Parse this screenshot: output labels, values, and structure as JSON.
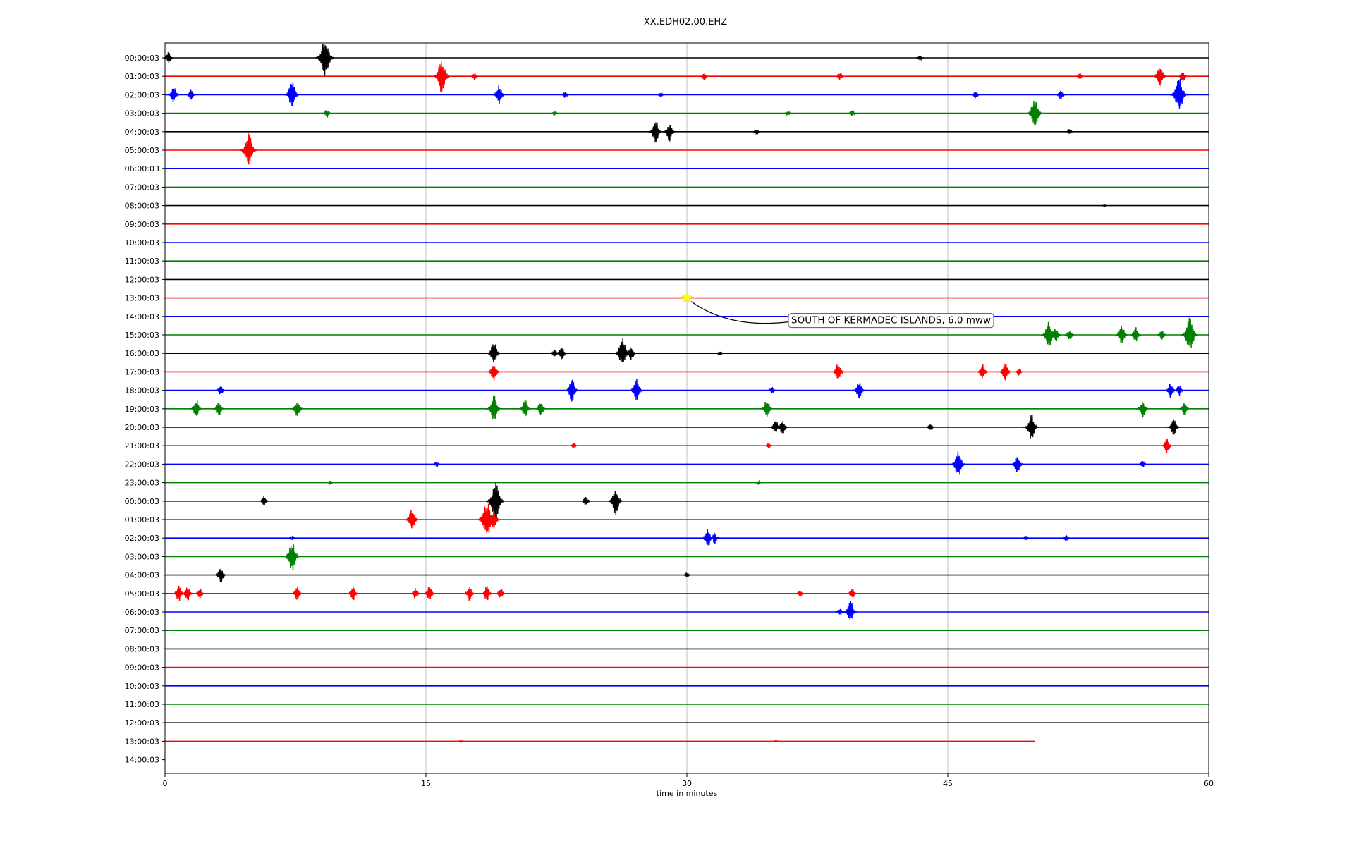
{
  "chart_data": {
    "type": "line",
    "title": "XX.EDH02.00.EHZ",
    "xlabel": "time in minutes",
    "ylabel": "",
    "xlim": [
      0,
      60
    ],
    "x_ticks": [
      0,
      15,
      30,
      45,
      60
    ],
    "grid": "vertical at 15 min",
    "row_colors": [
      "#000000",
      "#ff0000",
      "#0000ff",
      "#008000"
    ],
    "row_labels": [
      "00:00:03",
      "01:00:03",
      "02:00:03",
      "03:00:03",
      "04:00:03",
      "05:00:03",
      "06:00:03",
      "07:00:03",
      "08:00:03",
      "09:00:03",
      "10:00:03",
      "11:00:03",
      "12:00:03",
      "13:00:03",
      "14:00:03",
      "15:00:03",
      "16:00:03",
      "17:00:03",
      "18:00:03",
      "19:00:03",
      "20:00:03",
      "21:00:03",
      "22:00:03",
      "23:00:03",
      "00:00:03",
      "01:00:03",
      "02:00:03",
      "03:00:03",
      "04:00:03",
      "05:00:03",
      "06:00:03",
      "07:00:03",
      "08:00:03",
      "09:00:03",
      "10:00:03",
      "11:00:03",
      "12:00:03",
      "13:00:03",
      "14:00:03"
    ],
    "trace_end_minutes": [
      60,
      60,
      60,
      60,
      60,
      60,
      60,
      60,
      60,
      60,
      60,
      60,
      60,
      60,
      60,
      60,
      60,
      60,
      60,
      60,
      60,
      60,
      60,
      60,
      60,
      60,
      60,
      60,
      60,
      60,
      60,
      60,
      60,
      60,
      60,
      60,
      60,
      50,
      0
    ],
    "bursts": [
      [
        [
          0.2,
          0.3
        ],
        [
          9.2,
          1
        ],
        [
          43.4,
          0.15
        ]
      ],
      [
        [
          15.9,
          0.9
        ],
        [
          17.8,
          0.2
        ],
        [
          31,
          0.2
        ],
        [
          38.8,
          0.2
        ],
        [
          52.6,
          0.2
        ],
        [
          57.2,
          0.6
        ],
        [
          58.5,
          0.3
        ]
      ],
      [
        [
          0.5,
          0.45
        ],
        [
          1.5,
          0.3
        ],
        [
          7.3,
          0.7
        ],
        [
          19.2,
          0.5
        ],
        [
          23,
          0.2
        ],
        [
          28.5,
          0.15
        ],
        [
          46.6,
          0.2
        ],
        [
          51.5,
          0.3
        ],
        [
          58.3,
          0.9
        ]
      ],
      [
        [
          9.3,
          0.25
        ],
        [
          22.4,
          0.15
        ],
        [
          35.8,
          0.15
        ],
        [
          39.5,
          0.2
        ],
        [
          50,
          0.8
        ]
      ],
      [
        [
          28.2,
          0.6
        ],
        [
          29,
          0.5
        ],
        [
          34,
          0.15
        ],
        [
          52,
          0.15
        ]
      ],
      [
        [
          4.8,
          0.9
        ]
      ],
      [],
      [],
      [
        [
          54,
          0.05
        ]
      ],
      [],
      [],
      [],
      [],
      [],
      [],
      [
        [
          50.8,
          0.7
        ],
        [
          51.2,
          0.4
        ],
        [
          52,
          0.3
        ],
        [
          55,
          0.5
        ],
        [
          55.8,
          0.4
        ],
        [
          57.3,
          0.3
        ],
        [
          58.9,
          0.9
        ]
      ],
      [
        [
          18.9,
          0.6
        ],
        [
          22.4,
          0.25
        ],
        [
          22.8,
          0.4
        ],
        [
          26.3,
          0.8
        ],
        [
          26.8,
          0.4
        ],
        [
          31.9,
          0.15
        ]
      ],
      [
        [
          18.9,
          0.5
        ],
        [
          38.7,
          0.5
        ],
        [
          47,
          0.4
        ],
        [
          48.3,
          0.5
        ],
        [
          49.1,
          0.2
        ]
      ],
      [
        [
          3.2,
          0.3
        ],
        [
          23.4,
          0.6
        ],
        [
          27.1,
          0.6
        ],
        [
          34.9,
          0.2
        ],
        [
          39.9,
          0.5
        ],
        [
          57.8,
          0.4
        ],
        [
          58.3,
          0.3
        ]
      ],
      [
        [
          1.8,
          0.5
        ],
        [
          3.1,
          0.4
        ],
        [
          7.6,
          0.5
        ],
        [
          18.9,
          0.7
        ],
        [
          20.7,
          0.5
        ],
        [
          21.6,
          0.4
        ],
        [
          34.6,
          0.5
        ],
        [
          56.2,
          0.5
        ],
        [
          58.6,
          0.4
        ]
      ],
      [
        [
          35.1,
          0.4
        ],
        [
          35.5,
          0.4
        ],
        [
          44,
          0.2
        ],
        [
          49.8,
          0.7
        ],
        [
          58,
          0.5
        ]
      ],
      [
        [
          23.5,
          0.15
        ],
        [
          34.7,
          0.15
        ],
        [
          57.6,
          0.4
        ]
      ],
      [
        [
          15.6,
          0.15
        ],
        [
          45.6,
          0.7
        ],
        [
          49,
          0.5
        ],
        [
          56.2,
          0.2
        ]
      ],
      [
        [
          9.5,
          0.1
        ],
        [
          34.1,
          0.1
        ]
      ],
      [
        [
          5.7,
          0.3
        ],
        [
          19,
          1
        ],
        [
          24.2,
          0.3
        ],
        [
          25.9,
          0.7
        ]
      ],
      [
        [
          14.2,
          0.6
        ],
        [
          18.5,
          1
        ],
        [
          18.9,
          0.5
        ]
      ],
      [
        [
          7.3,
          0.15
        ],
        [
          31.2,
          0.5
        ],
        [
          31.6,
          0.3
        ],
        [
          49.5,
          0.15
        ],
        [
          51.8,
          0.2
        ]
      ],
      [
        [
          7.3,
          0.8
        ]
      ],
      [
        [
          3.2,
          0.4
        ],
        [
          30,
          0.15
        ]
      ],
      [
        [
          0.8,
          0.45
        ],
        [
          1.3,
          0.4
        ],
        [
          2,
          0.3
        ],
        [
          7.6,
          0.4
        ],
        [
          10.8,
          0.4
        ],
        [
          14.4,
          0.3
        ],
        [
          15.2,
          0.4
        ],
        [
          17.5,
          0.4
        ],
        [
          18.5,
          0.4
        ],
        [
          19.3,
          0.3
        ],
        [
          36.5,
          0.2
        ],
        [
          39.5,
          0.3
        ]
      ],
      [
        [
          38.8,
          0.2
        ],
        [
          39.4,
          0.6
        ]
      ],
      [],
      [],
      [],
      [],
      [],
      [],
      [
        [
          17,
          0.05
        ],
        [
          35.1,
          0.05
        ]
      ],
      []
    ],
    "event": {
      "label": "SOUTH OF KERMADEC ISLANDS, 6.0 mww",
      "row": 13,
      "minute": 30.0,
      "marker": "star",
      "marker_color": "#ffff00"
    }
  }
}
